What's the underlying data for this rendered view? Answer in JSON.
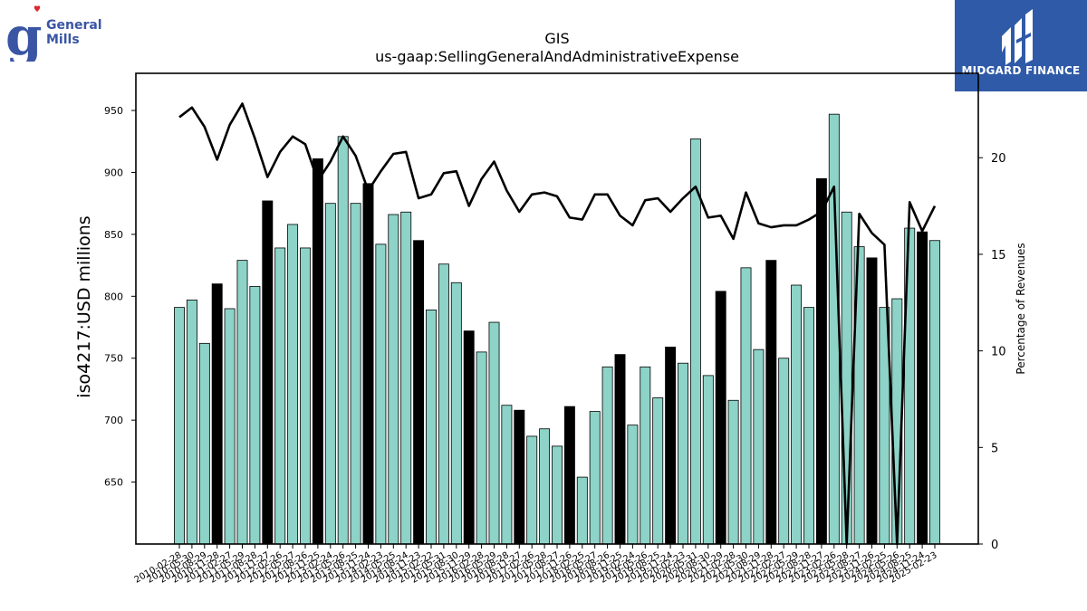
{
  "company_logo": {
    "line1": "General",
    "line2": "Mills"
  },
  "watermark": {
    "text": "MIDGARD FINANCE",
    "color": "#2f5aa8"
  },
  "chart_data": {
    "type": "bar",
    "title": "GIS",
    "subtitle": "us-gaap:SellingGeneralAndAdministrativeExpense",
    "ylabel": "iso4217:USD  millions",
    "y2label": "Percentage of Revenues",
    "ylim": [
      600,
      980
    ],
    "y2lim": [
      0,
      24.37
    ],
    "yticks": [
      650,
      700,
      750,
      800,
      850,
      900,
      950
    ],
    "y2ticks": [
      0,
      5,
      10,
      15,
      20
    ],
    "colors": {
      "quarter": "#8dd3c7",
      "fiscal_year": "#000000",
      "line": "#000000"
    },
    "categories": [
      "2010-02-28",
      "2010-05-30",
      "2010-08-29",
      "2010-11-28",
      "2011-02-27",
      "2011-05-29",
      "2011-08-28",
      "2011-11-27",
      "2012-02-26",
      "2012-05-27",
      "2012-08-26",
      "2012-11-25",
      "2013-02-24",
      "2013-05-26",
      "2013-08-25",
      "2013-11-24",
      "2014-02-23",
      "2014-05-25",
      "2014-08-24",
      "2014-11-23",
      "2015-02-22",
      "2015-05-31",
      "2015-08-30",
      "2015-11-29",
      "2016-02-28",
      "2016-05-29",
      "2016-08-28",
      "2016-11-27",
      "2017-02-26",
      "2017-05-28",
      "2017-08-27",
      "2017-11-26",
      "2018-02-25",
      "2018-05-27",
      "2018-08-26",
      "2018-11-25",
      "2019-02-24",
      "2019-05-26",
      "2019-08-25",
      "2019-11-24",
      "2020-02-23",
      "2020-05-31",
      "2020-08-30",
      "2020-11-29",
      "2021-02-28",
      "2021-05-30",
      "2021-08-29",
      "2021-11-28",
      "2022-02-27",
      "2022-05-29",
      "2022-08-28",
      "2022-11-27",
      "2023-02-26",
      "2023-05-28",
      "2023-08-27",
      "2023-11-26",
      "2024-02-25",
      "2024-05-26",
      "2024-08-25",
      "2024-11-24",
      "2025-02-23"
    ],
    "values": [
      791,
      797,
      762,
      810,
      790,
      829,
      808,
      877,
      839,
      858,
      839,
      911,
      875,
      929,
      875,
      891,
      842,
      866,
      868,
      845,
      789,
      826,
      811,
      772,
      755,
      779,
      712,
      708,
      687,
      693,
      679,
      711,
      654,
      707,
      743,
      753,
      696,
      743,
      718,
      759,
      746,
      927,
      736,
      804,
      716,
      823,
      757,
      829,
      750,
      809,
      791,
      895,
      947,
      868,
      840,
      831,
      791,
      798,
      855,
      852,
      845
    ],
    "fiscal_year_flags": [
      0,
      0,
      0,
      1,
      0,
      0,
      0,
      1,
      0,
      0,
      0,
      1,
      0,
      0,
      0,
      1,
      0,
      0,
      0,
      1,
      0,
      0,
      0,
      1,
      0,
      0,
      0,
      1,
      0,
      0,
      0,
      1,
      0,
      0,
      0,
      1,
      0,
      0,
      0,
      1,
      0,
      0,
      0,
      1,
      0,
      0,
      0,
      1,
      0,
      0,
      0,
      1,
      0,
      0,
      0,
      1,
      0,
      0,
      0,
      1,
      0
    ],
    "pct_of_revenues": [
      22.1,
      22.6,
      21.6,
      19.9,
      21.7,
      22.8,
      21.0,
      19.0,
      20.3,
      21.1,
      20.7,
      18.8,
      19.8,
      21.1,
      20.1,
      18.3,
      19.3,
      20.2,
      20.3,
      17.9,
      18.1,
      19.2,
      19.3,
      17.5,
      18.9,
      19.8,
      18.3,
      17.2,
      18.1,
      18.2,
      18.0,
      16.9,
      16.8,
      18.1,
      18.1,
      17.0,
      16.5,
      17.8,
      17.9,
      17.2,
      17.9,
      18.5,
      16.9,
      17.0,
      15.8,
      18.2,
      16.6,
      16.4,
      16.5,
      16.5,
      16.8,
      17.2,
      18.5,
      0.0,
      17.1,
      16.1,
      15.5,
      0.0,
      17.7,
      16.2,
      17.5
    ]
  }
}
